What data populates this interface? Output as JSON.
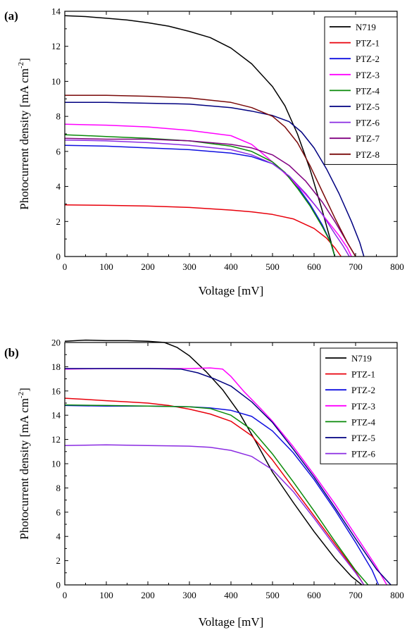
{
  "chart_data": [
    {
      "type": "line",
      "panel_label": "(a)",
      "xlabel": "Voltage [mV]",
      "ylabel": "Photocurrent density [mA cm",
      "ylabel_sup": "-2",
      "ylabel_close": "]",
      "xlim": [
        0,
        800
      ],
      "ylim": [
        0,
        14
      ],
      "xticks": [
        0,
        100,
        200,
        300,
        400,
        500,
        600,
        700,
        800
      ],
      "yticks": [
        0,
        2,
        4,
        6,
        8,
        10,
        12,
        14
      ],
      "grid": false,
      "legend_position": "top-right",
      "series": [
        {
          "name": "N719",
          "color": "#000000",
          "x": [
            0,
            50,
            100,
            150,
            200,
            250,
            300,
            350,
            400,
            450,
            500,
            530,
            560,
            590,
            620,
            640,
            650
          ],
          "y": [
            13.75,
            13.7,
            13.6,
            13.5,
            13.35,
            13.15,
            12.85,
            12.5,
            11.9,
            11.0,
            9.7,
            8.6,
            7.0,
            5.0,
            2.6,
            0.9,
            0
          ]
        },
        {
          "name": "PTZ-1",
          "color": "#e8000b",
          "x": [
            0,
            100,
            200,
            300,
            400,
            450,
            500,
            550,
            600,
            630,
            650,
            665
          ],
          "y": [
            2.95,
            2.92,
            2.88,
            2.8,
            2.65,
            2.55,
            2.4,
            2.15,
            1.6,
            1.05,
            0.5,
            0
          ]
        },
        {
          "name": "PTZ-2",
          "color": "#1010e0",
          "x": [
            0,
            100,
            200,
            300,
            400,
            450,
            500,
            530,
            560,
            590,
            620,
            640,
            650
          ],
          "y": [
            6.35,
            6.3,
            6.2,
            6.1,
            5.9,
            5.7,
            5.3,
            4.8,
            4.0,
            3.0,
            1.8,
            0.8,
            0
          ]
        },
        {
          "name": "PTZ-3",
          "color": "#ff00ff",
          "x": [
            0,
            100,
            200,
            300,
            400,
            450,
            480,
            510,
            540,
            570,
            600,
            630,
            660,
            680,
            690
          ],
          "y": [
            7.55,
            7.5,
            7.4,
            7.2,
            6.9,
            6.4,
            5.8,
            5.2,
            4.5,
            3.8,
            3.0,
            2.1,
            1.2,
            0.5,
            0
          ]
        },
        {
          "name": "PTZ-4",
          "color": "#0a8a0a",
          "x": [
            0,
            100,
            200,
            300,
            400,
            450,
            500,
            530,
            560,
            590,
            620,
            640,
            650
          ],
          "y": [
            6.95,
            6.85,
            6.75,
            6.6,
            6.3,
            6.0,
            5.4,
            4.8,
            3.9,
            2.9,
            1.7,
            0.8,
            0
          ]
        },
        {
          "name": "PTZ-5",
          "color": "#000080",
          "x": [
            0,
            100,
            200,
            300,
            400,
            450,
            500,
            540,
            570,
            600,
            630,
            660,
            690,
            710,
            720
          ],
          "y": [
            8.8,
            8.8,
            8.75,
            8.7,
            8.5,
            8.3,
            8.05,
            7.7,
            7.1,
            6.2,
            5.0,
            3.6,
            2.0,
            0.8,
            0
          ]
        },
        {
          "name": "PTZ-6",
          "color": "#8a2be2",
          "x": [
            0,
            100,
            200,
            300,
            400,
            450,
            500,
            540,
            580,
            620,
            650,
            670,
            685
          ],
          "y": [
            6.65,
            6.6,
            6.5,
            6.35,
            6.1,
            5.8,
            5.3,
            4.6,
            3.6,
            2.4,
            1.3,
            0.6,
            0
          ]
        },
        {
          "name": "PTZ-7",
          "color": "#800080",
          "x": [
            0,
            100,
            200,
            300,
            400,
            450,
            500,
            540,
            580,
            620,
            650,
            680,
            700
          ],
          "y": [
            6.75,
            6.7,
            6.7,
            6.6,
            6.4,
            6.2,
            5.8,
            5.2,
            4.3,
            3.1,
            2.0,
            0.8,
            0
          ]
        },
        {
          "name": "PTZ-8",
          "color": "#7a0a0a",
          "x": [
            0,
            100,
            200,
            300,
            400,
            450,
            500,
            530,
            560,
            590,
            620,
            650,
            680,
            700
          ],
          "y": [
            9.2,
            9.2,
            9.15,
            9.05,
            8.8,
            8.5,
            8.0,
            7.4,
            6.5,
            5.2,
            3.7,
            2.2,
            0.8,
            0
          ]
        }
      ]
    },
    {
      "type": "line",
      "panel_label": "(b)",
      "xlabel": "Voltage [mV]",
      "ylabel": "Photocurrent density [mA cm",
      "ylabel_sup": "-2",
      "ylabel_close": "]",
      "xlim": [
        0,
        800
      ],
      "ylim": [
        0,
        20
      ],
      "xticks": [
        0,
        100,
        200,
        300,
        400,
        500,
        600,
        700,
        800
      ],
      "yticks": [
        0,
        2,
        4,
        6,
        8,
        10,
        12,
        14,
        16,
        18,
        20
      ],
      "grid": false,
      "legend_position": "top-right",
      "series": [
        {
          "name": "N719",
          "color": "#000000",
          "x": [
            0,
            50,
            100,
            150,
            200,
            240,
            270,
            300,
            340,
            380,
            420,
            460,
            500,
            550,
            600,
            650,
            690,
            715
          ],
          "y": [
            20.1,
            20.2,
            20.15,
            20.15,
            20.1,
            20.0,
            19.6,
            18.9,
            17.6,
            16.1,
            14.2,
            11.8,
            9.3,
            6.8,
            4.4,
            2.2,
            0.7,
            0
          ]
        },
        {
          "name": "PTZ-1",
          "color": "#e8000b",
          "x": [
            0,
            50,
            100,
            150,
            200,
            250,
            300,
            350,
            400,
            450,
            500,
            550,
            600,
            650,
            700,
            720
          ],
          "y": [
            15.4,
            15.3,
            15.2,
            15.1,
            15.0,
            14.8,
            14.5,
            14.1,
            13.5,
            12.3,
            10.3,
            8.0,
            5.7,
            3.4,
            1.1,
            0
          ]
        },
        {
          "name": "PTZ-2",
          "color": "#1010e0",
          "x": [
            0,
            100,
            200,
            300,
            350,
            400,
            450,
            500,
            550,
            600,
            650,
            700,
            740,
            755
          ],
          "y": [
            14.8,
            14.75,
            14.75,
            14.7,
            14.6,
            14.4,
            13.9,
            12.7,
            10.9,
            8.7,
            6.2,
            3.5,
            1.2,
            0
          ]
        },
        {
          "name": "PTZ-3",
          "color": "#ff00ff",
          "x": [
            0,
            100,
            200,
            300,
            350,
            380,
            400,
            430,
            470,
            500,
            550,
            600,
            650,
            700,
            750,
            775
          ],
          "y": [
            17.8,
            17.85,
            17.85,
            17.85,
            17.9,
            17.8,
            17.2,
            16.0,
            14.6,
            13.5,
            11.4,
            9.1,
            6.7,
            4.1,
            1.5,
            0
          ]
        },
        {
          "name": "PTZ-4",
          "color": "#0a8a0a",
          "x": [
            0,
            100,
            200,
            300,
            350,
            400,
            450,
            500,
            550,
            600,
            650,
            700,
            730
          ],
          "y": [
            14.85,
            14.8,
            14.75,
            14.7,
            14.55,
            14.0,
            12.8,
            10.8,
            8.5,
            6.1,
            3.6,
            1.2,
            0
          ]
        },
        {
          "name": "PTZ-5",
          "color": "#000080",
          "x": [
            0,
            100,
            200,
            280,
            320,
            360,
            400,
            450,
            500,
            550,
            600,
            650,
            700,
            750,
            785
          ],
          "y": [
            17.85,
            17.85,
            17.85,
            17.8,
            17.5,
            17.0,
            16.4,
            15.1,
            13.4,
            11.2,
            8.9,
            6.4,
            3.8,
            1.3,
            0
          ]
        },
        {
          "name": "PTZ-6",
          "color": "#8a2be2",
          "x": [
            0,
            100,
            200,
            300,
            350,
            400,
            450,
            500,
            550,
            600,
            650,
            700,
            720
          ],
          "y": [
            11.5,
            11.55,
            11.5,
            11.45,
            11.35,
            11.1,
            10.6,
            9.5,
            7.7,
            5.5,
            3.2,
            1.0,
            0
          ]
        }
      ]
    }
  ]
}
